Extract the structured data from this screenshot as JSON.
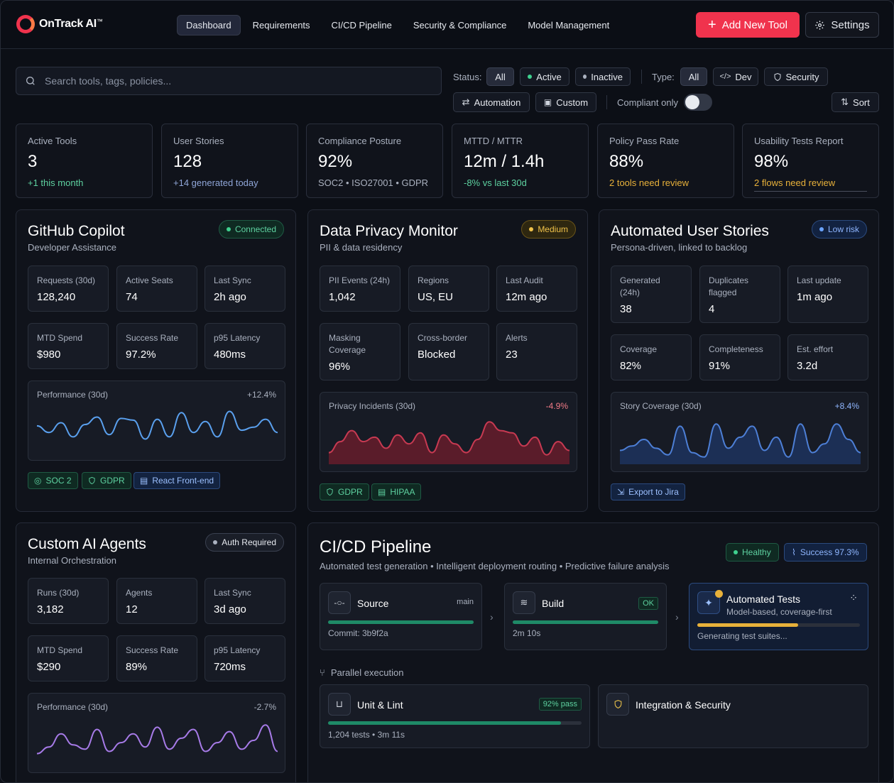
{
  "app": {
    "name": "OnTrack AI",
    "trademark": "™"
  },
  "nav": {
    "items": [
      {
        "label": "Dashboard",
        "active": true
      },
      {
        "label": "Requirements",
        "active": false
      },
      {
        "label": "CI/CD Pipeline",
        "active": false
      },
      {
        "label": "Security & Compliance",
        "active": false
      },
      {
        "label": "Model Management",
        "active": false
      }
    ],
    "add_label": "Add New Tool",
    "settings_label": "Settings"
  },
  "search": {
    "placeholder": "Search tools, tags, policies..."
  },
  "filters": {
    "status_label": "Status:",
    "status": [
      "All",
      "Active",
      "Inactive"
    ],
    "type_label": "Type:",
    "types": [
      "All",
      "Dev",
      "Security",
      "Automation",
      "Custom"
    ],
    "compliant_label": "Compliant only",
    "compliant_on": false,
    "sort_label": "Sort"
  },
  "stats": [
    {
      "title": "Active Tools",
      "value": "3",
      "sub": "+1 this month",
      "color": "#5ed1a0"
    },
    {
      "title": "User Stories",
      "value": "128",
      "sub": "+14 generated today",
      "color": "#8fa6d8"
    },
    {
      "title": "Compliance Posture",
      "value": "92%",
      "sub": "SOC2 • ISO27001 • GDPR",
      "color": "#aab1bf"
    },
    {
      "title": "MTTD / MTTR",
      "value": "12m / 1.4h",
      "sub": "-8% vs last 30d",
      "color": "#5ed1a0"
    },
    {
      "title": "Policy Pass Rate",
      "value": "88%",
      "sub": "2 tools need review",
      "color": "#e8b13a"
    },
    {
      "title": "Usability Tests Report",
      "value": "98%",
      "sub": "2 flows need review",
      "color": "#e8b13a"
    }
  ],
  "copilot": {
    "title": "GitHub Copilot",
    "subtitle": "Developer Assistance",
    "badge": "Connected",
    "metrics": [
      {
        "label": "Requests (30d)",
        "value": "128,240"
      },
      {
        "label": "Active Seats",
        "value": "74"
      },
      {
        "label": "Last Sync",
        "value": "2h ago"
      },
      {
        "label": "MTD Spend",
        "value": "$980"
      },
      {
        "label": "Success Rate",
        "value": "97.2%"
      },
      {
        "label": "p95 Latency",
        "value": "480ms"
      }
    ],
    "chart": {
      "label": "Performance (30d)",
      "delta": "+12.4%",
      "values": [
        55,
        40,
        62,
        30,
        58,
        75,
        35,
        72,
        68,
        25,
        70,
        30,
        85,
        40,
        65,
        30,
        88,
        45,
        52,
        70,
        40
      ]
    },
    "tags": [
      "SOC 2",
      "GDPR",
      "React Front-end"
    ]
  },
  "privacy": {
    "title": "Data Privacy Monitor",
    "subtitle": "PII & data residency",
    "badge": "Medium",
    "metrics": [
      {
        "label": "PII Events (24h)",
        "value": "1,042"
      },
      {
        "label": "Regions",
        "value": "US, EU"
      },
      {
        "label": "Last Audit",
        "value": "12m ago"
      },
      {
        "label": "Masking Coverage",
        "value": "96%"
      },
      {
        "label": "Cross-border",
        "value": "Blocked"
      },
      {
        "label": "Alerts",
        "value": "23"
      }
    ],
    "chart": {
      "label": "Privacy Incidents (30d)",
      "delta": "-4.9%",
      "values": [
        20,
        45,
        70,
        45,
        55,
        30,
        60,
        40,
        65,
        20,
        60,
        40,
        20,
        50,
        90,
        70,
        65,
        35,
        55,
        15,
        45,
        25
      ]
    },
    "tags": [
      "GDPR",
      "HIPAA"
    ]
  },
  "stories": {
    "title": "Automated User Stories",
    "subtitle": "Persona-driven, linked to backlog",
    "badge": "Low risk",
    "metrics": [
      {
        "label": "Generated (24h)",
        "value": "38"
      },
      {
        "label": "Duplicates flagged",
        "value": "4"
      },
      {
        "label": "Last update",
        "value": "1m ago"
      },
      {
        "label": "Coverage",
        "value": "82%"
      },
      {
        "label": "Completeness",
        "value": "91%"
      },
      {
        "label": "Est. effort",
        "value": "3.2d"
      }
    ],
    "chart": {
      "label": "Story Coverage (30d)",
      "delta": "+8.4%",
      "values": [
        25,
        35,
        50,
        30,
        15,
        80,
        20,
        10,
        85,
        30,
        55,
        80,
        25,
        55,
        10,
        85,
        20,
        40,
        85,
        50,
        20
      ]
    },
    "action": "Export to Jira"
  },
  "agents": {
    "title": "Custom AI Agents",
    "subtitle": "Internal Orchestration",
    "badge": "Auth Required",
    "metrics": [
      {
        "label": "Runs (30d)",
        "value": "3,182"
      },
      {
        "label": "Agents",
        "value": "12"
      },
      {
        "label": "Last Sync",
        "value": "3d ago"
      },
      {
        "label": "MTD Spend",
        "value": "$290"
      },
      {
        "label": "Success Rate",
        "value": "89%"
      },
      {
        "label": "p95 Latency",
        "value": "720ms"
      }
    ],
    "chart": {
      "label": "Performance (30d)",
      "delta": "-2.7%",
      "values": [
        20,
        35,
        65,
        40,
        30,
        75,
        25,
        45,
        65,
        35,
        80,
        30,
        55,
        75,
        25,
        45,
        70,
        30,
        50,
        85,
        25
      ]
    }
  },
  "pipeline": {
    "title": "CI/CD Pipeline",
    "subtitle": "Automated test generation • Intelligent deployment routing • Predictive failure analysis",
    "healthy": "Healthy",
    "success": "Success 97.3%",
    "stages": [
      {
        "name": "Source",
        "tag": "main",
        "meta": "Commit: 3b9f2a",
        "progress": 1.0
      },
      {
        "name": "Build",
        "tag": "OK",
        "meta": "2m 10s",
        "progress": 1.0
      },
      {
        "name": "Automated Tests",
        "sub": "Model-based, coverage-first",
        "meta": "Generating test suites...",
        "progress": 0.62
      }
    ],
    "parallel_label": "Parallel execution",
    "parallel": [
      {
        "name": "Unit & Lint",
        "tag": "92% pass",
        "meta": "1,204 tests • 3m 11s",
        "progress": 0.92
      },
      {
        "name": "Integration & Security"
      }
    ]
  }
}
